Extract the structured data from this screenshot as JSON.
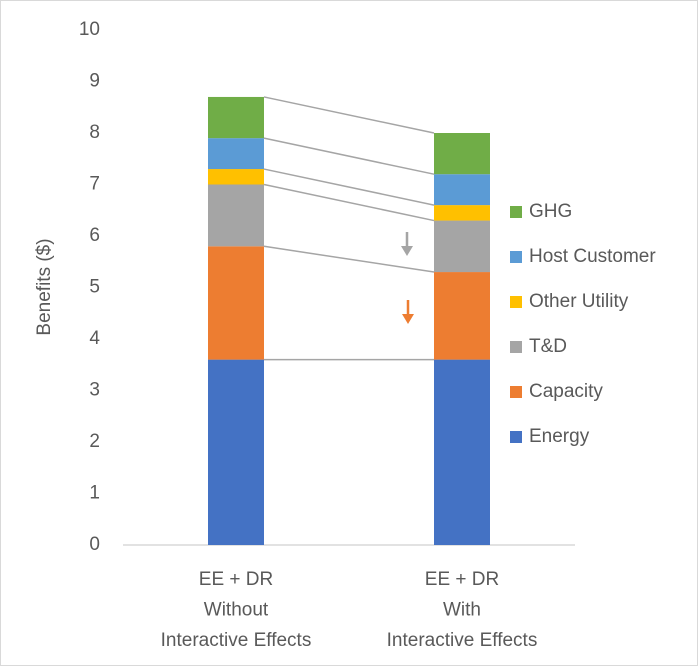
{
  "chart_data": {
    "type": "stacked_bar",
    "y_label": "Benefits ($)",
    "categories": [
      [
        "EE + DR",
        "Without",
        "Interactive Effects"
      ],
      [
        "EE + DR",
        "With",
        "Interactive Effects"
      ]
    ],
    "series": [
      {
        "name": "Energy",
        "color": "#4472c4",
        "values": [
          3.6,
          3.6
        ]
      },
      {
        "name": "Capacity",
        "color": "#ed7d31",
        "values": [
          2.2,
          1.7
        ]
      },
      {
        "name": "T&D",
        "color": "#a5a5a5",
        "values": [
          1.2,
          1.0
        ]
      },
      {
        "name": "Other Utility",
        "color": "#ffc000",
        "values": [
          0.3,
          0.3
        ]
      },
      {
        "name": "Host Customer",
        "color": "#5b9bd5",
        "values": [
          0.6,
          0.6
        ]
      },
      {
        "name": "GHG",
        "color": "#70ad47",
        "values": [
          0.8,
          0.8
        ]
      }
    ],
    "ylim": [
      0,
      10
    ],
    "yticks": [
      0,
      1,
      2,
      3,
      4,
      5,
      6,
      7,
      8,
      9,
      10
    ],
    "grid": false,
    "legend": "right"
  }
}
